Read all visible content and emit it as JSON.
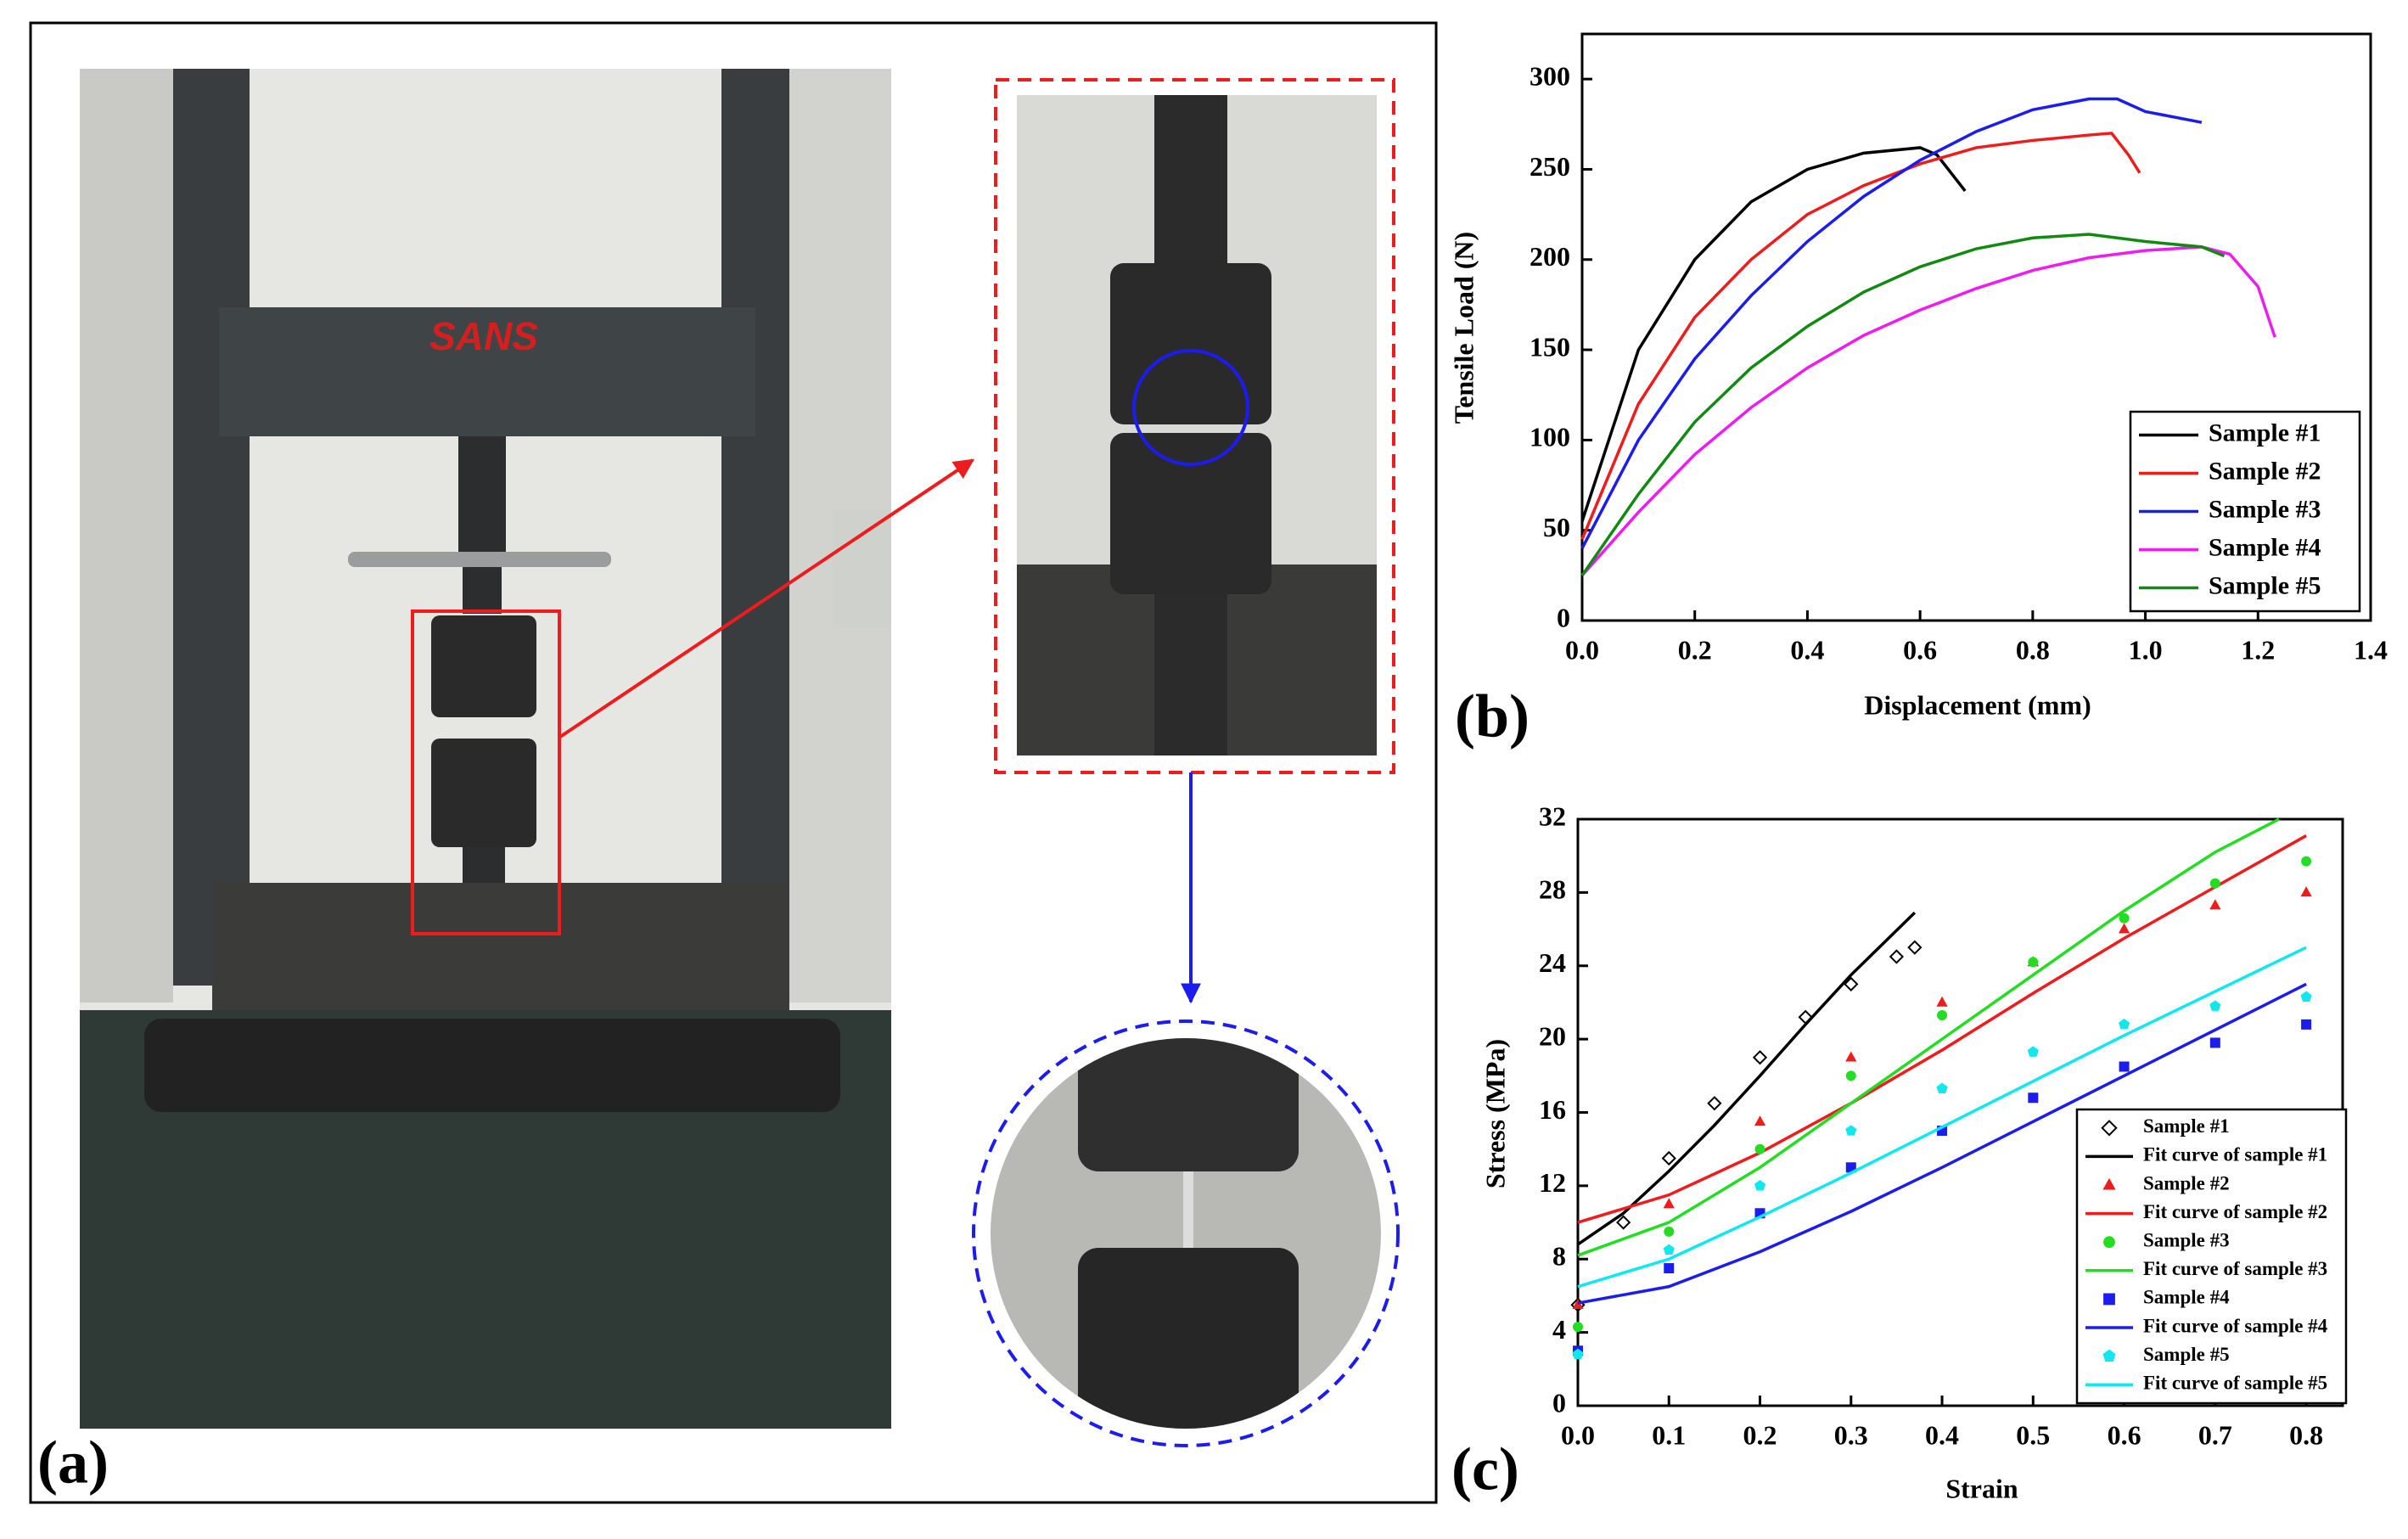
{
  "panels": {
    "a": "(a)",
    "b": "(b)",
    "c": "(c)",
    "logo": "SANS"
  },
  "chart_data": [
    {
      "type": "line",
      "x_label": "Displacement (mm)",
      "y_label": "Tensile Load (N)",
      "xlim": [
        0,
        1.4
      ],
      "ylim": [
        0,
        325
      ],
      "xticks": [
        {
          "value": 0,
          "label": "0.0"
        },
        0.2,
        0.4,
        0.6,
        0.8,
        {
          "value": 1,
          "label": "1.0"
        },
        1.2,
        1.4
      ],
      "yticks": [
        0,
        50,
        100,
        150,
        200,
        250,
        300
      ],
      "legend": "lower-right",
      "series": [
        {
          "name": "Sample #1",
          "color": "#000000",
          "x": [
            0,
            0.1,
            0.2,
            0.3,
            0.4,
            0.5,
            0.6,
            0.63,
            0.68
          ],
          "values": [
            55,
            150,
            200,
            232,
            250,
            259,
            262,
            258,
            238
          ]
        },
        {
          "name": "Sample #2",
          "color": "#ee1c1c",
          "x": [
            0,
            0.1,
            0.2,
            0.3,
            0.4,
            0.5,
            0.6,
            0.7,
            0.8,
            0.9,
            0.94,
            0.97,
            0.99
          ],
          "values": [
            45,
            120,
            168,
            200,
            225,
            241,
            253,
            262,
            266,
            269,
            270,
            258,
            248
          ]
        },
        {
          "name": "Sample #3",
          "color": "#1c1cee",
          "x": [
            0,
            0.1,
            0.2,
            0.3,
            0.4,
            0.5,
            0.6,
            0.7,
            0.8,
            0.9,
            0.95,
            1.0,
            1.1
          ],
          "values": [
            40,
            100,
            145,
            180,
            210,
            235,
            255,
            271,
            283,
            289,
            289,
            282,
            276
          ]
        },
        {
          "name": "Sample #4",
          "color": "#ee1cee",
          "x": [
            0,
            0.1,
            0.2,
            0.3,
            0.4,
            0.5,
            0.6,
            0.7,
            0.8,
            0.9,
            1.0,
            1.1,
            1.15,
            1.2,
            1.23
          ],
          "values": [
            25,
            60,
            92,
            118,
            140,
            158,
            172,
            184,
            194,
            201,
            205,
            207,
            203,
            185,
            157
          ]
        },
        {
          "name": "Sample #5",
          "color": "#118a11",
          "x": [
            0,
            0.1,
            0.2,
            0.3,
            0.4,
            0.5,
            0.6,
            0.7,
            0.8,
            0.9,
            1.0,
            1.1,
            1.14
          ],
          "values": [
            25,
            70,
            110,
            140,
            163,
            182,
            196,
            206,
            212,
            214,
            210,
            207,
            202
          ]
        }
      ]
    },
    {
      "type": "scatter",
      "x_label": "Strain",
      "y_label": "Stress (MPa)",
      "xlim": [
        0,
        0.84
      ],
      "ylim": [
        0,
        32
      ],
      "xticks": [
        {
          "value": 0,
          "label": "0.0"
        },
        0.1,
        0.2,
        0.3,
        0.4,
        0.5,
        0.6,
        0.7,
        0.8
      ],
      "yticks": [
        0,
        4,
        8,
        12,
        16,
        20,
        24,
        28,
        32
      ],
      "legend": "lower-right",
      "series": [
        {
          "name": "Sample #1",
          "color": "#000000",
          "marker": "diamond",
          "x": [
            0,
            0.05,
            0.1,
            0.15,
            0.2,
            0.25,
            0.3,
            0.35,
            0.37
          ],
          "values": [
            5.5,
            10,
            13.5,
            16.5,
            19,
            21.2,
            23,
            24.5,
            25
          ]
        },
        {
          "name": "Fit curve of sample #1",
          "color": "#000000",
          "x": [
            0,
            0.05,
            0.1,
            0.15,
            0.2,
            0.25,
            0.3,
            0.37
          ],
          "values": [
            8.8,
            10.5,
            12.8,
            15.3,
            18,
            20.8,
            23.5,
            26.9
          ]
        },
        {
          "name": "Sample #2",
          "color": "#ee1c1c",
          "marker": "triangle",
          "x": [
            0,
            0.1,
            0.2,
            0.3,
            0.4,
            0.5,
            0.6,
            0.7,
            0.8
          ],
          "values": [
            5.5,
            11,
            15.5,
            19,
            22,
            24.2,
            26,
            27.3,
            28
          ]
        },
        {
          "name": "Fit curve of sample #2",
          "color": "#ee1c1c",
          "x": [
            0,
            0.1,
            0.2,
            0.3,
            0.4,
            0.5,
            0.6,
            0.7,
            0.8
          ],
          "values": [
            10,
            11.5,
            13.8,
            16.5,
            19.4,
            22.5,
            25.5,
            28.3,
            31.1
          ]
        },
        {
          "name": "Sample #3",
          "color": "#22dd22",
          "marker": "circle",
          "x": [
            0,
            0.1,
            0.2,
            0.3,
            0.4,
            0.5,
            0.6,
            0.7,
            0.8
          ],
          "values": [
            4.3,
            9.5,
            14,
            18,
            21.3,
            24.2,
            26.6,
            28.5,
            29.7
          ]
        },
        {
          "name": "Fit curve of sample #3",
          "color": "#22dd22",
          "x": [
            0,
            0.1,
            0.2,
            0.3,
            0.4,
            0.5,
            0.6,
            0.7,
            0.77
          ],
          "values": [
            8.2,
            10,
            13,
            16.5,
            20,
            23.5,
            27,
            30.2,
            32
          ]
        },
        {
          "name": "Sample #4",
          "color": "#1c1cee",
          "marker": "square",
          "x": [
            0,
            0.1,
            0.2,
            0.3,
            0.4,
            0.5,
            0.6,
            0.7,
            0.8
          ],
          "values": [
            3,
            7.5,
            10.5,
            13,
            15,
            16.8,
            18.5,
            19.8,
            20.8
          ]
        },
        {
          "name": "Fit curve of sample #4",
          "color": "#1c1cee",
          "x": [
            0,
            0.1,
            0.2,
            0.3,
            0.4,
            0.5,
            0.6,
            0.7,
            0.8
          ],
          "values": [
            5.6,
            6.5,
            8.4,
            10.6,
            13,
            15.5,
            18,
            20.5,
            23
          ]
        },
        {
          "name": "Sample #5",
          "color": "#11e8ee",
          "marker": "pentagon",
          "x": [
            0,
            0.1,
            0.2,
            0.3,
            0.4,
            0.5,
            0.6,
            0.7,
            0.8
          ],
          "values": [
            2.8,
            8.5,
            12,
            15,
            17.3,
            19.3,
            20.8,
            21.8,
            22.3
          ]
        },
        {
          "name": "Fit curve of sample #5",
          "color": "#11e8ee",
          "x": [
            0,
            0.1,
            0.2,
            0.3,
            0.4,
            0.5,
            0.6,
            0.7,
            0.8
          ],
          "values": [
            6.5,
            8,
            10.3,
            12.7,
            15.2,
            17.7,
            20.2,
            22.6,
            25
          ]
        }
      ]
    }
  ]
}
